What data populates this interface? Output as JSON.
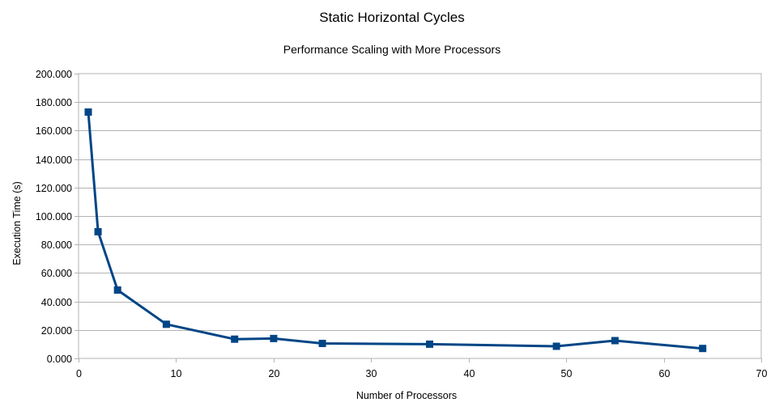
{
  "chart_data": {
    "type": "line",
    "title": "Static Horizontal Cycles",
    "subtitle": "Performance Scaling with More Processors",
    "xlabel": "Number of Processors",
    "ylabel": "Execution Time (s)",
    "xlim": [
      0,
      70
    ],
    "ylim": [
      0,
      200
    ],
    "x_ticks": [
      0,
      10,
      20,
      30,
      40,
      50,
      60,
      70
    ],
    "x_tick_labels": [
      "0",
      "10",
      "20",
      "30",
      "40",
      "50",
      "60",
      "70"
    ],
    "y_ticks": [
      0,
      20,
      40,
      60,
      80,
      100,
      120,
      140,
      160,
      180,
      200
    ],
    "y_tick_labels": [
      "0.000",
      "20.000",
      "40.000",
      "60.000",
      "80.000",
      "100.000",
      "120.000",
      "140.000",
      "160.000",
      "180.000",
      "200.000"
    ],
    "grid": true,
    "legend": "none",
    "marker": "square",
    "series_color": "#004586",
    "series": [
      {
        "x": [
          1,
          2,
          4,
          9,
          16,
          20,
          25,
          36,
          49,
          55,
          64
        ],
        "y": [
          173,
          89,
          48,
          24,
          13.5,
          14,
          10.5,
          10,
          8.5,
          12.5,
          7
        ]
      }
    ]
  }
}
